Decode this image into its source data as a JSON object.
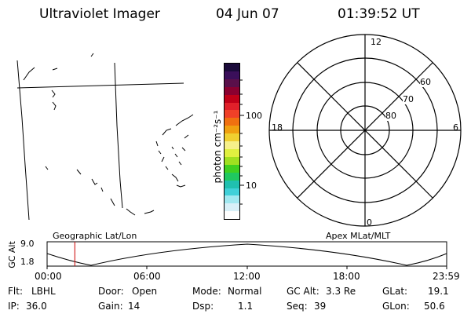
{
  "header": {
    "title": "Ultraviolet Imager",
    "date": "04 Jun 07",
    "time": "01:39:52 UT"
  },
  "colorbar": {
    "unit_label": "photon cm⁻²s⁻¹",
    "tick_100": "100",
    "tick_10": "10",
    "colors": [
      "#1a0a3a",
      "#3a0f5a",
      "#5a0f4a",
      "#8a0030",
      "#c00018",
      "#e0202a",
      "#f04028",
      "#f07010",
      "#f0a010",
      "#f0d030",
      "#f6f08a",
      "#e0f040",
      "#a0e020",
      "#40d020",
      "#20c860",
      "#20c0b0",
      "#40d0d8",
      "#a0e8f0",
      "#d8f0f8",
      "#ffffff"
    ]
  },
  "polar": {
    "mlt_top": "12",
    "mlt_left": "18",
    "mlt_right": "6",
    "mlt_bottom": "0",
    "lat_60": "60",
    "lat_70": "70",
    "lat_80": "80"
  },
  "timeline": {
    "ylabel": "GC Alt",
    "y_top": "9.0",
    "y_bottom": "1.8",
    "left_label": "Geographic Lat/Lon",
    "right_label": "Apex MLat/MLT",
    "ticks": [
      "00:00",
      "06:00",
      "12:00",
      "18:00",
      "23:59"
    ],
    "marker_time_hours": 1.664,
    "marker_color": "#cc0000"
  },
  "info": {
    "flt_label": "Flt:",
    "flt_value": "LBHL",
    "door_label": "Door:",
    "door_value": "Open",
    "mode_label": "Mode:",
    "mode_value": "Normal",
    "gcalt_label": "GC Alt:",
    "gcalt_value": "3.3 Re",
    "glat_label": "GLat:",
    "glat_value": "19.1",
    "ip_label": "IP:",
    "ip_value": "36.0",
    "gain_label": "Gain:",
    "gain_value": "14",
    "dsp_label": "Dsp:",
    "dsp_value": "1.1",
    "seq_label": "Seq:",
    "seq_value": "39",
    "glon_label": "GLon:",
    "glon_value": "50.6"
  }
}
